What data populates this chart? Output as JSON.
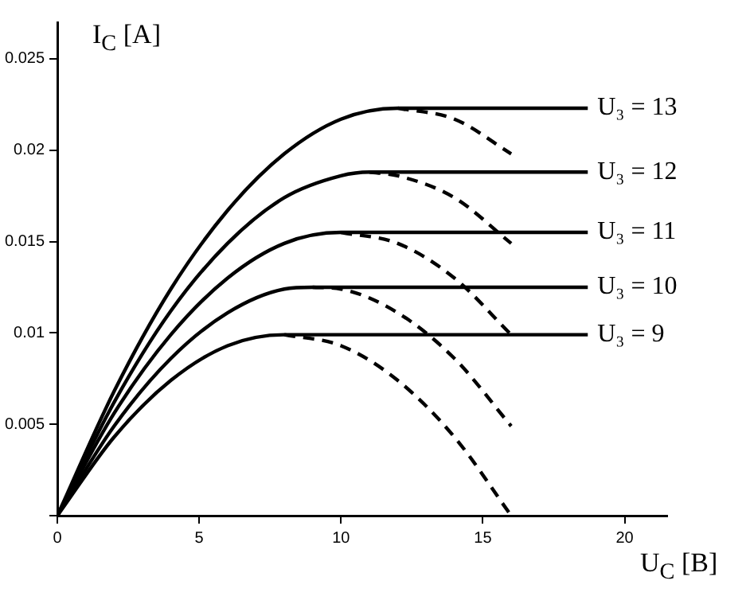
{
  "chart_data": {
    "type": "line",
    "xlabel": "U$_{C}$ [B]",
    "ylabel": "I$_{C}$ [A]",
    "xlim": [
      0,
      21.5
    ],
    "ylim": [
      0,
      0.027
    ],
    "xticks": [
      0,
      5,
      10,
      15,
      20
    ],
    "yticks": [
      {
        "value": 0,
        "label": null
      },
      0.005,
      0.01,
      0.015,
      0.02,
      0.025
    ],
    "grid": false,
    "legend": false,
    "marker": "none",
    "series": [
      {
        "name": "U₃ = 13",
        "color": "#000000",
        "line_style": "solid",
        "x": [
          0,
          2,
          4,
          6,
          8,
          10,
          12,
          18.7
        ],
        "values": [
          0,
          0.0068,
          0.0124,
          0.0167,
          0.0198,
          0.0217,
          0.0223,
          0.0223
        ]
      },
      {
        "color": "#000000",
        "line_style": "dashed",
        "x": [
          12,
          14,
          16
        ],
        "values": [
          0.0223,
          0.0217,
          0.0198
        ]
      },
      {
        "name": "U₃ = 12",
        "color": "#000000",
        "line_style": "solid",
        "x": [
          0,
          2,
          4,
          6,
          8,
          10,
          11,
          18.7
        ],
        "values": [
          0,
          0.0062,
          0.0112,
          0.0149,
          0.0174,
          0.0186,
          0.0188,
          0.0188
        ]
      },
      {
        "color": "#000000",
        "line_style": "dashed",
        "x": [
          11,
          12,
          14,
          16
        ],
        "values": [
          0.0188,
          0.0186,
          0.0174,
          0.0149
        ]
      },
      {
        "name": "U₃ = 11",
        "color": "#000000",
        "line_style": "solid",
        "x": [
          0,
          2,
          4,
          6,
          8,
          10,
          18.7
        ],
        "values": [
          0,
          0.0056,
          0.0099,
          0.013,
          0.0149,
          0.0155,
          0.0155
        ]
      },
      {
        "color": "#000000",
        "line_style": "dashed",
        "x": [
          10,
          12,
          14,
          16
        ],
        "values": [
          0.0155,
          0.0149,
          0.013,
          0.0099
        ]
      },
      {
        "name": "U₃ = 10",
        "color": "#000000",
        "line_style": "solid",
        "x": [
          0,
          2,
          4,
          6,
          8,
          9,
          18.7
        ],
        "values": [
          0,
          0.0049,
          0.0086,
          0.0111,
          0.0124,
          0.0125,
          0.0125
        ]
      },
      {
        "color": "#000000",
        "line_style": "dashed",
        "x": [
          9,
          10,
          12,
          14,
          16
        ],
        "values": [
          0.0125,
          0.0124,
          0.0111,
          0.0086,
          0.0049
        ]
      },
      {
        "name": "U₃ = 9",
        "color": "#000000",
        "line_style": "solid",
        "x": [
          0,
          2,
          4,
          6,
          8,
          18.7
        ],
        "values": [
          0,
          0.0043,
          0.0074,
          0.0093,
          0.0099,
          0.0099
        ]
      },
      {
        "color": "#000000",
        "line_style": "dashed",
        "x": [
          8,
          10,
          12,
          14,
          16
        ],
        "values": [
          0.0099,
          0.0093,
          0.0074,
          0.0043,
          0
        ]
      }
    ]
  }
}
